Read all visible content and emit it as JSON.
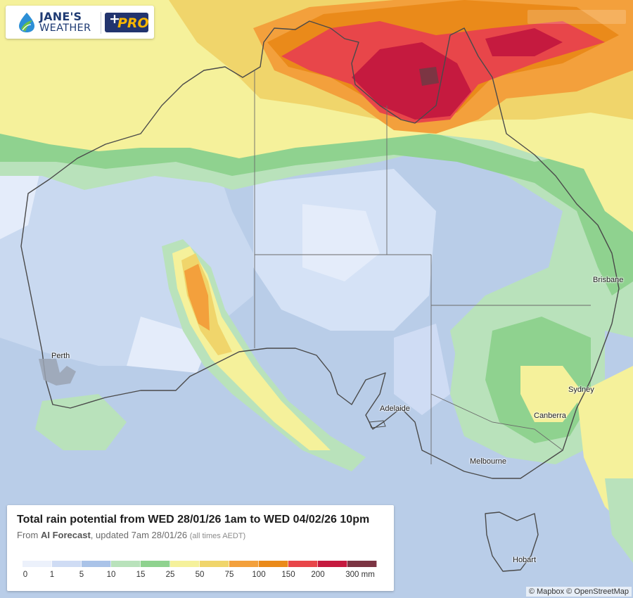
{
  "brand": {
    "name_line1": "JANE'S",
    "name_line2": "WEATHER",
    "pro_label": "PRO",
    "pro_plus": "+"
  },
  "legend": {
    "title": "Total rain potential from WED 28/01/26 1am to WED 04/02/26 10pm",
    "sub_prefix": "From",
    "sub_source": "AI Forecast",
    "sub_updated": ", updated 7am 28/01/26",
    "sub_tz": "(all times AEDT)",
    "ticks": [
      "0",
      "1",
      "5",
      "10",
      "15",
      "25",
      "50",
      "75",
      "100",
      "150",
      "200",
      "300 mm"
    ],
    "colors": [
      "#ecf1fb",
      "#cfdcf4",
      "#aac3e8",
      "#b9e2bb",
      "#8fd28f",
      "#f5f19b",
      "#f0d56b",
      "#f3a03c",
      "#ea8a1a",
      "#e8464a",
      "#c51a3f",
      "#7c3543"
    ]
  },
  "cities": [
    {
      "id": "perth",
      "name": "Perth"
    },
    {
      "id": "adelaide",
      "name": "Adelaide"
    },
    {
      "id": "melbourne",
      "name": "Melbourne"
    },
    {
      "id": "hobart",
      "name": "Hobart"
    },
    {
      "id": "sydney",
      "name": "Sydney"
    },
    {
      "id": "canberra",
      "name": "Canberra"
    },
    {
      "id": "brisbane",
      "name": "Brisbane"
    }
  ],
  "attribution": "© Mapbox © OpenStreetMap"
}
